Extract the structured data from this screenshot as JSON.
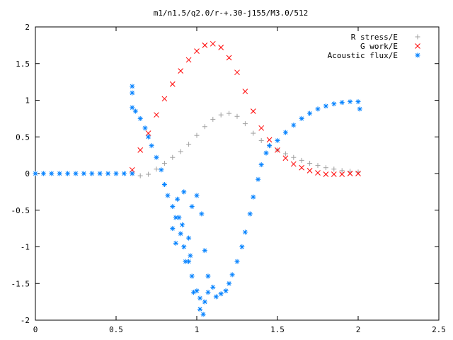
{
  "chart_data": {
    "type": "scatter",
    "title": "m1/n1.5/q2.0/r-+.30-j155/M3.0/512",
    "xlabel": "",
    "ylabel": "",
    "xlim": [
      0,
      2.5
    ],
    "ylim": [
      -2,
      2
    ],
    "x_ticks": [
      "0",
      "0.5",
      "1",
      "1.5",
      "2",
      "2.5"
    ],
    "y_ticks": [
      "2",
      "1.5",
      "1",
      "0.5",
      "0",
      "-0.5",
      "-1",
      "-1.5",
      "-2"
    ],
    "grid": false,
    "legend_position": "top-right",
    "series": [
      {
        "name": "R stress/E",
        "marker": "plus",
        "color": "#a0a0a0",
        "x": [
          0.6,
          0.65,
          0.7,
          0.75,
          0.8,
          0.85,
          0.9,
          0.95,
          1.0,
          1.05,
          1.1,
          1.15,
          1.2,
          1.25,
          1.3,
          1.35,
          1.4,
          1.45,
          1.5,
          1.55,
          1.6,
          1.65,
          1.7,
          1.75,
          1.8,
          1.85,
          1.9,
          1.95,
          2.0
        ],
        "y": [
          0.0,
          -0.03,
          -0.01,
          0.06,
          0.14,
          0.22,
          0.3,
          0.4,
          0.52,
          0.64,
          0.74,
          0.8,
          0.82,
          0.78,
          0.68,
          0.55,
          0.45,
          0.38,
          0.32,
          0.27,
          0.22,
          0.18,
          0.14,
          0.11,
          0.08,
          0.06,
          0.04,
          0.03,
          0.02
        ]
      },
      {
        "name": "G work/E",
        "marker": "cross",
        "color": "#ff0000",
        "x": [
          0.6,
          0.65,
          0.7,
          0.75,
          0.8,
          0.85,
          0.9,
          0.95,
          1.0,
          1.05,
          1.1,
          1.15,
          1.2,
          1.25,
          1.3,
          1.35,
          1.4,
          1.45,
          1.5,
          1.55,
          1.6,
          1.65,
          1.7,
          1.75,
          1.8,
          1.85,
          1.9,
          1.95,
          2.0
        ],
        "y": [
          0.05,
          0.32,
          0.55,
          0.8,
          1.02,
          1.22,
          1.4,
          1.55,
          1.67,
          1.75,
          1.77,
          1.72,
          1.58,
          1.38,
          1.12,
          0.85,
          0.62,
          0.46,
          0.32,
          0.21,
          0.13,
          0.08,
          0.04,
          0.01,
          -0.01,
          -0.01,
          -0.01,
          0.0,
          0.0
        ]
      },
      {
        "name": "Acoustic flux/E",
        "marker": "star",
        "color": "#0080ff",
        "x": [
          0.0,
          0.05,
          0.1,
          0.15,
          0.2,
          0.25,
          0.3,
          0.35,
          0.4,
          0.45,
          0.5,
          0.55,
          0.6,
          0.6,
          0.6,
          0.6,
          0.62,
          0.65,
          0.68,
          0.7,
          0.72,
          0.75,
          0.78,
          0.8,
          0.82,
          0.85,
          0.87,
          0.9,
          0.92,
          0.95,
          0.97,
          1.0,
          1.02,
          1.05,
          1.07,
          1.1,
          1.12,
          1.15,
          1.18,
          1.2,
          1.22,
          1.25,
          1.28,
          1.3,
          1.33,
          1.35,
          1.38,
          1.4,
          1.43,
          1.45,
          1.5,
          1.55,
          1.6,
          1.65,
          1.7,
          1.75,
          1.8,
          1.85,
          1.9,
          1.95,
          2.0,
          2.01,
          0.88,
          0.92,
          0.97,
          0.85,
          0.95,
          1.05,
          1.03,
          0.87,
          1.0,
          0.93,
          1.07,
          0.96,
          1.02,
          0.89,
          0.98,
          1.04,
          0.91
        ],
        "y": [
          0.0,
          0.0,
          0.0,
          0.0,
          0.0,
          0.0,
          0.0,
          0.0,
          0.0,
          0.0,
          0.0,
          0.0,
          0.0,
          1.19,
          1.1,
          0.9,
          0.85,
          0.75,
          0.62,
          0.5,
          0.38,
          0.22,
          0.05,
          -0.15,
          -0.3,
          -0.45,
          -0.6,
          -0.82,
          -1.0,
          -1.2,
          -1.4,
          -1.6,
          -1.7,
          -1.75,
          -1.62,
          -1.55,
          -1.68,
          -1.64,
          -1.6,
          -1.5,
          -1.38,
          -1.2,
          -1.0,
          -0.8,
          -0.55,
          -0.32,
          -0.08,
          0.12,
          0.28,
          0.38,
          0.45,
          0.56,
          0.66,
          0.75,
          0.82,
          0.88,
          0.92,
          0.95,
          0.97,
          0.98,
          0.98,
          0.88,
          -0.35,
          -0.25,
          -0.45,
          -0.75,
          -0.88,
          -1.05,
          -0.55,
          -0.95,
          -0.3,
          -1.2,
          -1.4,
          -1.12,
          -1.85,
          -0.6,
          -1.62,
          -1.92,
          -0.7
        ]
      }
    ]
  }
}
